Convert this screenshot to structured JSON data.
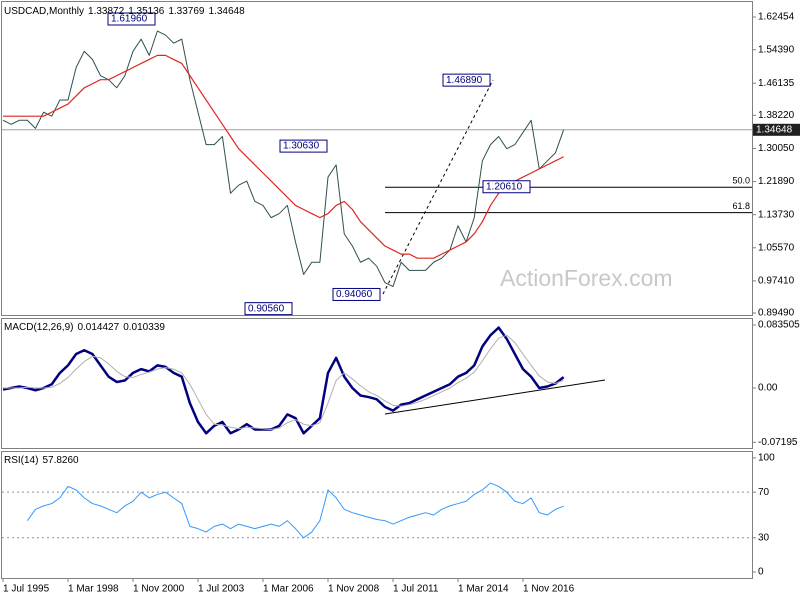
{
  "watermark": "ActionForex.com",
  "chart_data": [
    {
      "type": "line",
      "title": "USDCAD,Monthly",
      "ohlc": [
        1.33872,
        1.35136,
        1.33769,
        1.34648
      ],
      "ylim": [
        0.88997,
        1.66151
      ],
      "yticks": [
        1.62454,
        {
          "value": 1.5439,
          "label": "1.54390"
        },
        1.46135,
        {
          "value": 1.3822,
          "label": "1.38220"
        },
        {
          "value": 1.3005,
          "label": "1.30050"
        },
        {
          "value": 1.2189,
          "label": "1.21890"
        },
        {
          "value": 1.1373,
          "label": "1.13730"
        },
        {
          "value": 1.0557,
          "label": "1.05570"
        },
        {
          "value": 0.9741,
          "label": "0.97410"
        },
        {
          "value": 0.8949,
          "label": "0.89490"
        }
      ],
      "last_price": 1.34648,
      "series": [
        {
          "color": "#2f4f4f",
          "values": [
            1.37,
            1.36,
            1.37,
            1.37,
            1.35,
            1.39,
            1.38,
            1.42,
            1.42,
            1.5,
            1.54,
            1.52,
            1.48,
            1.47,
            1.45,
            1.48,
            1.54,
            1.57,
            1.53,
            1.59,
            1.58,
            1.56,
            1.57,
            1.47,
            1.39,
            1.31,
            1.31,
            1.33,
            1.19,
            1.21,
            1.22,
            1.17,
            1.16,
            1.13,
            1.14,
            1.16,
            1.07,
            0.99,
            1.02,
            1.02,
            1.23,
            1.26,
            1.09,
            1.06,
            1.02,
            1.03,
            1.01,
            0.97,
            0.96,
            1.02,
            1.0,
            1.0,
            1.0,
            1.02,
            1.03,
            1.05,
            1.11,
            1.07,
            1.13,
            1.27,
            1.31,
            1.33,
            1.3,
            1.31,
            1.34,
            1.37,
            1.25,
            1.27,
            1.29,
            1.34648
          ]
        },
        {
          "color": "#e0261f",
          "values": [
            1.38,
            1.38,
            1.38,
            1.38,
            1.38,
            1.38,
            1.39,
            1.4,
            1.41,
            1.43,
            1.45,
            1.46,
            1.47,
            1.47,
            1.48,
            1.49,
            1.5,
            1.51,
            1.52,
            1.53,
            1.53,
            1.52,
            1.51,
            1.48,
            1.45,
            1.42,
            1.39,
            1.36,
            1.33,
            1.3,
            1.28,
            1.26,
            1.24,
            1.22,
            1.2,
            1.18,
            1.16,
            1.15,
            1.14,
            1.13,
            1.14,
            1.16,
            1.17,
            1.15,
            1.12,
            1.1,
            1.08,
            1.06,
            1.05,
            1.04,
            1.04,
            1.03,
            1.03,
            1.03,
            1.04,
            1.05,
            1.06,
            1.07,
            1.09,
            1.12,
            1.16,
            1.19,
            1.21,
            1.22,
            1.23,
            1.24,
            1.25,
            1.26,
            1.27,
            1.28
          ]
        }
      ],
      "annotations": [
        {
          "value": 1.6196,
          "label": "1.61960"
        },
        {
          "value": 1.3063,
          "label": "1.30630"
        },
        {
          "value": 0.9056,
          "label": "0.90560"
        },
        {
          "value": 0.9406,
          "label": "0.94060"
        },
        {
          "value": 1.4689,
          "label": "1.46890"
        },
        {
          "value": 1.2061,
          "label": "1.20610"
        }
      ],
      "fib_levels": [
        {
          "value": 1.20475,
          "label": "50.0"
        },
        {
          "value": 1.1424,
          "label": "61.8"
        }
      ]
    },
    {
      "type": "line",
      "title": "MACD(12,26,9)",
      "readout": [
        0.014427,
        0.010339
      ],
      "ylim": [
        -0.0795,
        0.09275
      ],
      "yticks": [
        0.083505,
        {
          "value": 0,
          "label": "0.00"
        },
        -0.07195
      ],
      "series": [
        {
          "color": "#000080",
          "values": [
            -0.002,
            0.0,
            0.002,
            0.0,
            -0.003,
            0.0,
            0.005,
            0.02,
            0.03,
            0.045,
            0.05,
            0.045,
            0.03,
            0.015,
            0.008,
            0.01,
            0.02,
            0.025,
            0.022,
            0.03,
            0.028,
            0.02,
            0.015,
            -0.02,
            -0.045,
            -0.06,
            -0.05,
            -0.045,
            -0.06,
            -0.055,
            -0.048,
            -0.055,
            -0.055,
            -0.055,
            -0.05,
            -0.035,
            -0.04,
            -0.06,
            -0.05,
            -0.04,
            0.02,
            0.04,
            0.015,
            0.0,
            -0.01,
            -0.012,
            -0.015,
            -0.025,
            -0.03,
            -0.022,
            -0.02,
            -0.015,
            -0.01,
            -0.005,
            0.0,
            0.005,
            0.015,
            0.02,
            0.03,
            0.055,
            0.07,
            0.08,
            0.065,
            0.045,
            0.025,
            0.015,
            0.0,
            0.002,
            0.006,
            0.014427
          ]
        },
        {
          "color": "#b0b0b0",
          "values": [
            0.0,
            0.0,
            0.0,
            0.001,
            0.0,
            0.0,
            0.001,
            0.006,
            0.014,
            0.025,
            0.035,
            0.042,
            0.04,
            0.032,
            0.022,
            0.015,
            0.014,
            0.018,
            0.021,
            0.025,
            0.027,
            0.025,
            0.02,
            0.005,
            -0.015,
            -0.035,
            -0.048,
            -0.049,
            -0.052,
            -0.054,
            -0.052,
            -0.053,
            -0.054,
            -0.055,
            -0.053,
            -0.046,
            -0.042,
            -0.048,
            -0.05,
            -0.046,
            -0.02,
            0.01,
            0.02,
            0.012,
            0.003,
            -0.005,
            -0.01,
            -0.017,
            -0.023,
            -0.024,
            -0.022,
            -0.019,
            -0.015,
            -0.01,
            -0.005,
            0.0,
            0.007,
            0.013,
            0.021,
            0.036,
            0.052,
            0.066,
            0.07,
            0.06,
            0.045,
            0.03,
            0.016,
            0.008,
            0.006,
            0.010339
          ]
        }
      ]
    },
    {
      "type": "line",
      "title": "RSI(14)",
      "readout": [
        {
          "value": 57.826,
          "label": "57.8260"
        }
      ],
      "ylim": [
        -5.26,
        106.1
      ],
      "yticks": [
        100,
        70,
        30,
        0
      ],
      "level_lines": [
        70,
        30
      ],
      "categories": [
        "1 Jul 1995",
        null,
        null,
        null,
        null,
        null,
        null,
        null,
        "1 Mar 1998",
        null,
        null,
        null,
        null,
        null,
        null,
        null,
        "1 Nov 2000",
        null,
        null,
        null,
        null,
        null,
        null,
        null,
        "1 Jul 2003",
        null,
        null,
        null,
        null,
        null,
        null,
        null,
        "1 Mar 2006",
        null,
        null,
        null,
        null,
        null,
        null,
        null,
        "1 Nov 2008",
        null,
        null,
        null,
        null,
        null,
        null,
        null,
        "1 Jul 2011",
        null,
        null,
        null,
        null,
        null,
        null,
        null,
        "1 Mar 2014",
        null,
        null,
        null,
        null,
        null,
        null,
        null,
        "1 Nov 2016",
        null,
        null,
        null,
        null,
        null
      ],
      "series": [
        {
          "color": "#3399ff",
          "values": [
            null,
            null,
            null,
            45,
            55,
            58,
            60,
            65,
            75,
            72,
            65,
            60,
            58,
            55,
            52,
            58,
            62,
            70,
            65,
            68,
            70,
            65,
            60,
            40,
            38,
            35,
            40,
            42,
            38,
            42,
            40,
            38,
            40,
            42,
            40,
            45,
            38,
            30,
            35,
            45,
            72,
            65,
            55,
            52,
            50,
            48,
            46,
            45,
            42,
            45,
            48,
            50,
            52,
            50,
            55,
            58,
            60,
            62,
            68,
            72,
            78,
            75,
            70,
            62,
            60,
            65,
            52,
            50,
            55,
            57.826
          ]
        }
      ]
    }
  ]
}
